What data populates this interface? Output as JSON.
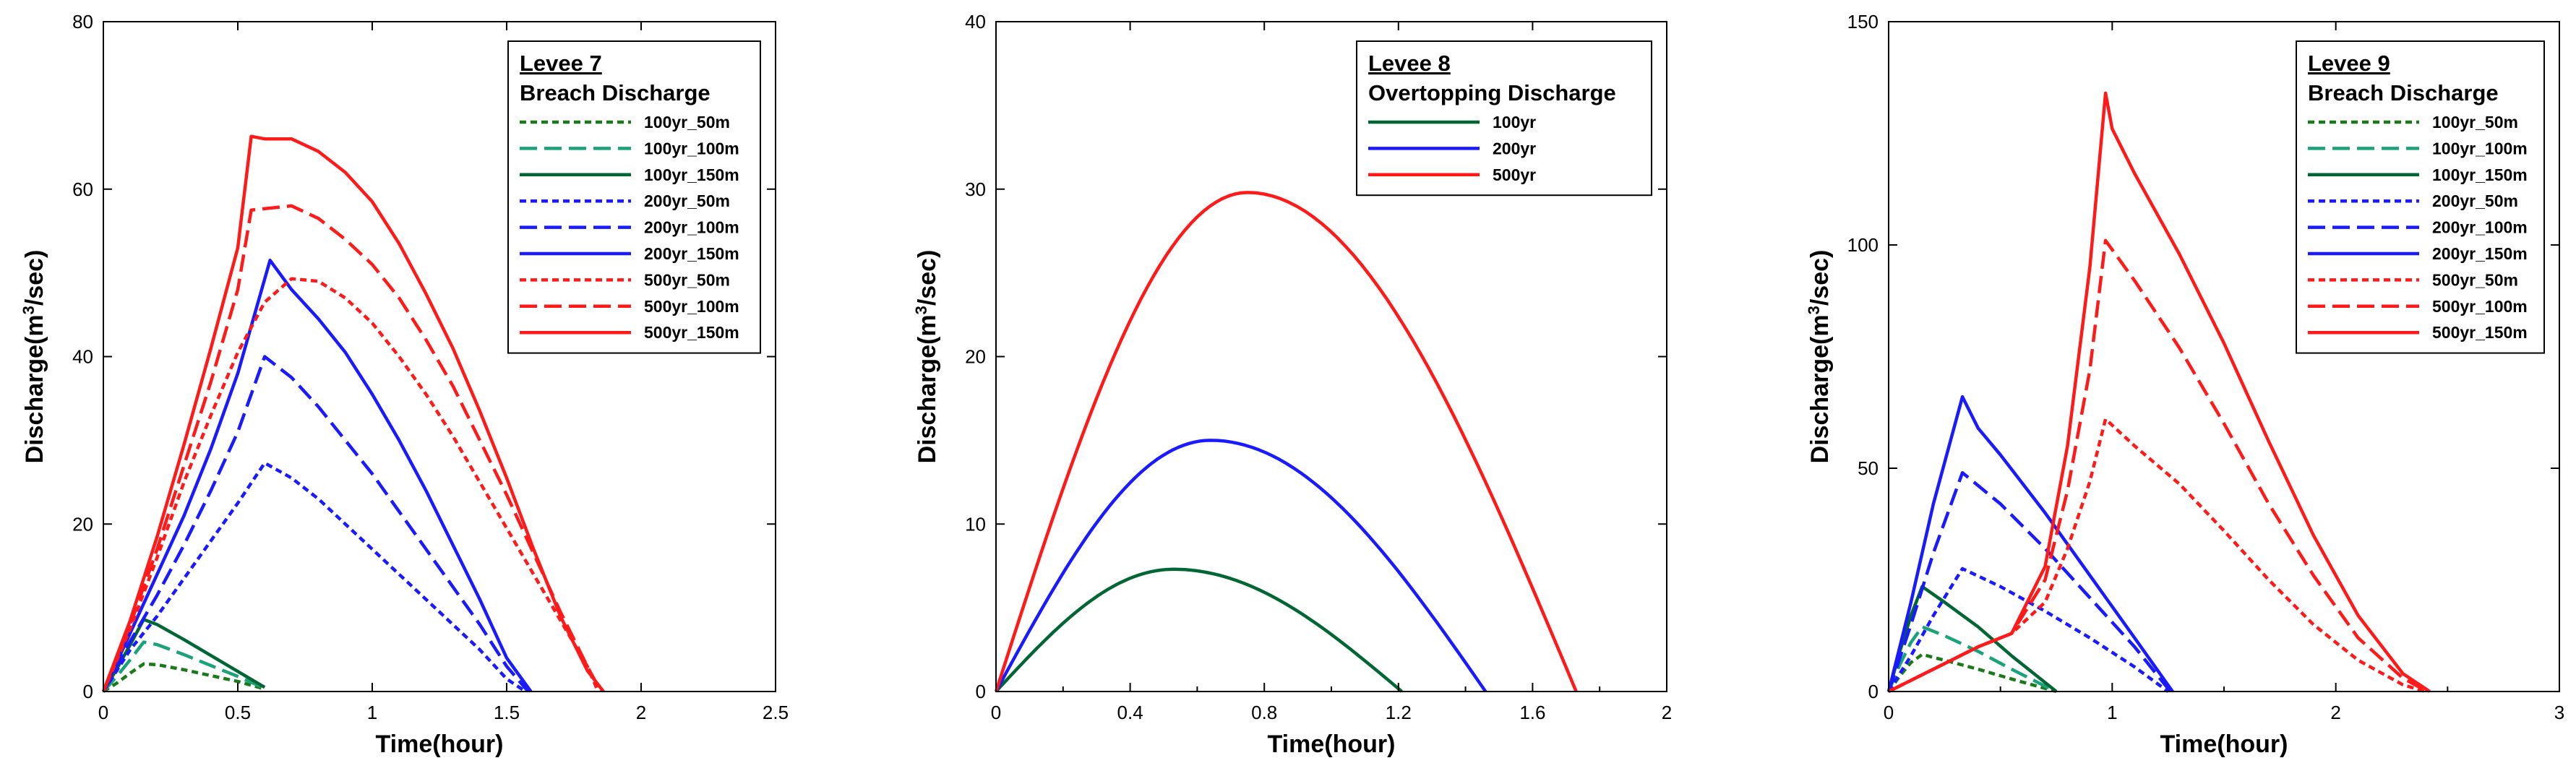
{
  "chart_data": [
    {
      "type": "line",
      "title": "Levee 7",
      "subtitle": "Breach Discharge",
      "xlabel": "Time(hour)",
      "ylabel_main": "Discharge(m",
      "ylabel_sup": "3",
      "ylabel_end": "/sec)",
      "xlim": [
        0,
        2.5
      ],
      "ylim": [
        0,
        80
      ],
      "xticks": [
        0,
        0.5,
        1,
        1.5,
        2,
        2.5
      ],
      "xtick_labels": [
        "0",
        "0.5",
        "1",
        "1.5",
        "2",
        "2.5"
      ],
      "yticks": [
        0,
        20,
        40,
        60,
        80
      ],
      "ytick_labels": [
        "0",
        "20",
        "40",
        "60",
        "80"
      ],
      "legend_position": "top-right",
      "series": [
        {
          "name": "100yr_50m",
          "color": "#1a7a1a",
          "dash": "short",
          "x": [
            0,
            0.05,
            0.1,
            0.15,
            0.2,
            0.3,
            0.4,
            0.5,
            0.6
          ],
          "y": [
            0,
            1,
            2.2,
            3.3,
            3.2,
            2.6,
            1.9,
            1.2,
            0.3
          ]
        },
        {
          "name": "100yr_100m",
          "color": "#1aa37a",
          "dash": "long",
          "x": [
            0,
            0.05,
            0.1,
            0.15,
            0.2,
            0.3,
            0.4,
            0.5,
            0.6
          ],
          "y": [
            0,
            1.8,
            3.8,
            5.9,
            5.6,
            4.4,
            3.1,
            1.8,
            0.4
          ]
        },
        {
          "name": "100yr_150m",
          "color": "#006633",
          "dash": "solid",
          "x": [
            0,
            0.05,
            0.1,
            0.15,
            0.2,
            0.3,
            0.4,
            0.5,
            0.6
          ],
          "y": [
            0,
            2.7,
            5.6,
            8.6,
            8,
            6.2,
            4.3,
            2.4,
            0.5
          ]
        },
        {
          "name": "200yr_50m",
          "color": "#1a1aff",
          "dash": "short",
          "x": [
            0,
            0.1,
            0.2,
            0.3,
            0.4,
            0.5,
            0.6,
            0.7,
            0.8,
            0.9,
            1,
            1.1,
            1.2,
            1.3,
            1.4,
            1.5,
            1.57
          ],
          "y": [
            0,
            5,
            9,
            13.5,
            18,
            22.5,
            27.3,
            25.5,
            23,
            20,
            17,
            14,
            11,
            8,
            5,
            1.5,
            0
          ]
        },
        {
          "name": "200yr_100m",
          "color": "#1a1aff",
          "dash": "long",
          "x": [
            0,
            0.1,
            0.2,
            0.3,
            0.4,
            0.5,
            0.6,
            0.7,
            0.8,
            0.9,
            1,
            1.1,
            1.2,
            1.3,
            1.4,
            1.5,
            1.58
          ],
          "y": [
            0,
            6,
            11.5,
            17.5,
            24,
            31,
            40,
            37.5,
            34,
            30,
            26,
            21.5,
            17,
            12.5,
            8,
            3,
            0
          ]
        },
        {
          "name": "200yr_150m",
          "color": "#1a1aff",
          "dash": "solid",
          "x": [
            0,
            0.1,
            0.2,
            0.3,
            0.4,
            0.5,
            0.62,
            0.7,
            0.8,
            0.9,
            1,
            1.1,
            1.2,
            1.3,
            1.4,
            1.5,
            1.59
          ],
          "y": [
            0,
            7,
            14,
            21,
            29,
            38,
            51.5,
            48,
            44.5,
            40.5,
            35.5,
            30,
            24,
            17.5,
            11,
            4,
            0
          ]
        },
        {
          "name": "500yr_50m",
          "color": "#ff1a1a",
          "dash": "short",
          "x": [
            0,
            0.1,
            0.2,
            0.3,
            0.4,
            0.5,
            0.6,
            0.7,
            0.8,
            0.9,
            1,
            1.1,
            1.2,
            1.3,
            1.4,
            1.5,
            1.6,
            1.7,
            1.8,
            1.84
          ],
          "y": [
            0,
            7.5,
            16,
            25,
            33,
            40.5,
            46.5,
            49.3,
            49,
            47,
            44,
            40,
            35.5,
            30.5,
            25,
            19.5,
            14,
            8.5,
            3,
            0
          ]
        },
        {
          "name": "500yr_100m",
          "color": "#ff1a1a",
          "dash": "long",
          "x": [
            0,
            0.1,
            0.2,
            0.3,
            0.4,
            0.5,
            0.55,
            0.7,
            0.8,
            0.9,
            1,
            1.1,
            1.2,
            1.3,
            1.4,
            1.5,
            1.6,
            1.7,
            1.8,
            1.85
          ],
          "y": [
            0,
            8,
            17,
            27,
            37,
            48,
            57.5,
            58,
            56.5,
            54,
            51,
            47,
            42,
            36.5,
            30,
            23.5,
            16.5,
            9.5,
            3,
            0
          ]
        },
        {
          "name": "500yr_150m",
          "color": "#ff1a1a",
          "dash": "solid",
          "x": [
            0,
            0.1,
            0.2,
            0.3,
            0.4,
            0.5,
            0.55,
            0.6,
            0.7,
            0.8,
            0.9,
            1,
            1.1,
            1.2,
            1.3,
            1.4,
            1.5,
            1.6,
            1.7,
            1.8,
            1.86
          ],
          "y": [
            0,
            8.5,
            18.5,
            29.5,
            41,
            53,
            66.3,
            66,
            66,
            64.5,
            62,
            58.5,
            53.5,
            47.5,
            41,
            33.5,
            25.5,
            17,
            9,
            2.5,
            0
          ]
        }
      ]
    },
    {
      "type": "line",
      "title": "Levee 8",
      "subtitle": "Overtopping Discharge",
      "xlabel": "Time(hour)",
      "ylabel_main": "Discharge(m",
      "ylabel_sup": "3",
      "ylabel_end": "/sec)",
      "xlim": [
        0,
        2
      ],
      "ylim": [
        0,
        40
      ],
      "xticks": [
        0,
        0.4,
        0.8,
        1.2,
        1.6,
        2
      ],
      "xtick_labels": [
        "0",
        "0.4",
        "0.8",
        "1.2",
        "1.6",
        "2"
      ],
      "minor_xticks": [
        0.2,
        0.6,
        1,
        1.4,
        1.8
      ],
      "yticks": [
        0,
        10,
        20,
        30,
        40
      ],
      "ytick_labels": [
        "0",
        "10",
        "20",
        "30",
        "40"
      ],
      "legend_position": "top-right",
      "series": [
        {
          "name": "100yr",
          "color": "#006633",
          "dash": "solid",
          "peak_x": 0.53,
          "peak_y": 7.3,
          "end_x": 1.21
        },
        {
          "name": "200yr",
          "color": "#1a1aff",
          "dash": "solid",
          "peak_x": 0.64,
          "peak_y": 15,
          "end_x": 1.46
        },
        {
          "name": "500yr",
          "color": "#ff1a1a",
          "dash": "solid",
          "peak_x": 0.75,
          "peak_y": 29.8,
          "end_x": 1.73
        }
      ]
    },
    {
      "type": "line",
      "title": "Levee 9",
      "subtitle": "Breach Discharge",
      "xlabel": "Time(hour)",
      "ylabel_main": "Discharge(m",
      "ylabel_sup": "3",
      "ylabel_end": "/sec)",
      "xlim": [
        0,
        3
      ],
      "ylim": [
        0,
        150
      ],
      "xticks": [
        0,
        1,
        2,
        3
      ],
      "xtick_labels": [
        "0",
        "1",
        "2",
        "3"
      ],
      "minor_xticks": [
        0.5,
        1.5,
        2.5
      ],
      "yticks": [
        0,
        50,
        100,
        150
      ],
      "ytick_labels": [
        "0",
        "50",
        "100",
        "150"
      ],
      "legend_position": "top-right",
      "series": [
        {
          "name": "100yr_50m",
          "color": "#1a7a1a",
          "dash": "short",
          "x": [
            0,
            0.05,
            0.1,
            0.15,
            0.25,
            0.4,
            0.55,
            0.7,
            0.75
          ],
          "y": [
            0,
            3.5,
            6.5,
            8.3,
            7,
            5,
            2.8,
            0.7,
            0
          ]
        },
        {
          "name": "100yr_100m",
          "color": "#1aa37a",
          "dash": "long",
          "x": [
            0,
            0.05,
            0.1,
            0.15,
            0.25,
            0.4,
            0.55,
            0.7,
            0.75
          ],
          "y": [
            0,
            6,
            11,
            14.5,
            12.5,
            9,
            5,
            1.2,
            0
          ]
        },
        {
          "name": "100yr_150m",
          "color": "#006633",
          "dash": "solid",
          "x": [
            0,
            0.05,
            0.1,
            0.15,
            0.25,
            0.4,
            0.55,
            0.7,
            0.75
          ],
          "y": [
            0,
            9,
            17,
            23.5,
            20,
            14.5,
            8,
            2,
            0
          ]
        },
        {
          "name": "200yr_50m",
          "color": "#1a1aff",
          "dash": "short",
          "x": [
            0,
            0.1,
            0.2,
            0.33,
            0.5,
            0.7,
            0.9,
            1.1,
            1.25
          ],
          "y": [
            0,
            8,
            17,
            27.5,
            23.5,
            18,
            12,
            5.5,
            0
          ]
        },
        {
          "name": "200yr_100m",
          "color": "#1a1aff",
          "dash": "long",
          "x": [
            0,
            0.1,
            0.2,
            0.33,
            0.5,
            0.7,
            0.9,
            1.1,
            1.26
          ],
          "y": [
            0,
            15,
            31,
            49,
            42,
            32,
            21,
            10,
            0
          ]
        },
        {
          "name": "200yr_150m",
          "color": "#1a1aff",
          "dash": "solid",
          "x": [
            0,
            0.1,
            0.2,
            0.33,
            0.4,
            0.5,
            0.7,
            0.9,
            1.1,
            1.27
          ],
          "y": [
            0,
            20,
            42,
            66,
            59,
            53,
            40,
            26,
            12,
            0
          ]
        },
        {
          "name": "500yr_50m",
          "color": "#ff1a1a",
          "dash": "short",
          "x": [
            0,
            0.2,
            0.4,
            0.55,
            0.7,
            0.8,
            0.9,
            0.97,
            1.1,
            1.3,
            1.5,
            1.7,
            1.9,
            2.1,
            2.3,
            2.4
          ],
          "y": [
            0,
            5,
            10,
            13,
            20,
            32,
            47,
            61,
            55,
            46.5,
            36,
            25,
            15,
            7,
            1.5,
            0
          ]
        },
        {
          "name": "500yr_100m",
          "color": "#ff1a1a",
          "dash": "long",
          "x": [
            0,
            0.2,
            0.4,
            0.55,
            0.7,
            0.8,
            0.9,
            0.97,
            1.1,
            1.3,
            1.5,
            1.7,
            1.9,
            2.1,
            2.3,
            2.41
          ],
          "y": [
            0,
            5,
            10,
            13,
            25,
            45,
            72,
            101,
            92,
            77,
            60,
            42,
            26,
            12,
            3,
            0
          ]
        },
        {
          "name": "500yr_150m",
          "color": "#ff1a1a",
          "dash": "solid",
          "x": [
            0,
            0.2,
            0.4,
            0.55,
            0.7,
            0.8,
            0.9,
            0.97,
            1.0,
            1.1,
            1.3,
            1.5,
            1.7,
            1.9,
            2.1,
            2.3,
            2.42
          ],
          "y": [
            0,
            5,
            10,
            13,
            28,
            55,
            95,
            134,
            126,
            116,
            98,
            78,
            56,
            35,
            17,
            4,
            0
          ]
        }
      ]
    }
  ]
}
